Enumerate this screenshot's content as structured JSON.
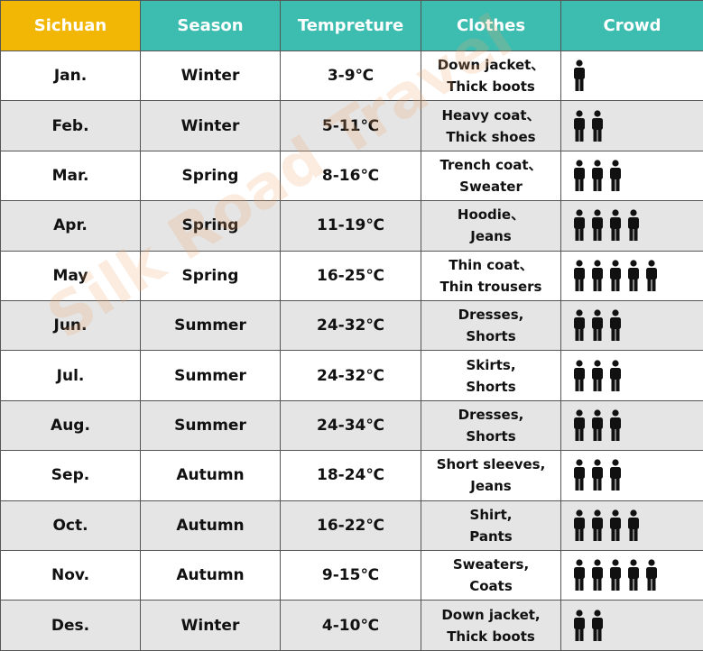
{
  "header": [
    "Sichuan",
    "Season",
    "Tempreture",
    "Clothes",
    "Crowd"
  ],
  "rows": [
    {
      "month": "Jan.",
      "season": "Winter",
      "temperature": "3-9℃",
      "clothes": [
        "Down jacket、",
        "Thick boots"
      ],
      "crowd": 1
    },
    {
      "month": "Feb.",
      "season": "Winter",
      "temperature": "5-11℃",
      "clothes": [
        "Heavy coat、",
        "Thick shoes"
      ],
      "crowd": 2
    },
    {
      "month": "Mar.",
      "season": "Spring",
      "temperature": "8-16℃",
      "clothes": [
        "Trench coat、",
        "Sweater"
      ],
      "crowd": 3
    },
    {
      "month": "Apr.",
      "season": "Spring",
      "temperature": "11-19℃",
      "clothes": [
        "Hoodie、",
        "Jeans"
      ],
      "crowd": 4
    },
    {
      "month": "May",
      "season": "Spring",
      "temperature": "16-25℃",
      "clothes": [
        "Thin coat、",
        "Thin trousers"
      ],
      "crowd": 5
    },
    {
      "month": "Jun.",
      "season": "Summer",
      "temperature": "24-32℃",
      "clothes": [
        "Dresses,",
        "Shorts"
      ],
      "crowd": 3
    },
    {
      "month": "Jul.",
      "season": "Summer",
      "temperature": "24-32℃",
      "clothes": [
        "Skirts,",
        "Shorts"
      ],
      "crowd": 3
    },
    {
      "month": "Aug.",
      "season": "Summer",
      "temperature": "24-34℃",
      "clothes": [
        "Dresses,",
        "Shorts"
      ],
      "crowd": 3
    },
    {
      "month": "Sep.",
      "season": "Autumn",
      "temperature": "18-24℃",
      "clothes": [
        "Short sleeves,",
        "Jeans"
      ],
      "crowd": 3
    },
    {
      "month": "Oct.",
      "season": "Autumn",
      "temperature": "16-22℃",
      "clothes": [
        "Shirt,",
        "Pants"
      ],
      "crowd": 4
    },
    {
      "month": "Nov.",
      "season": "Autumn",
      "temperature": "9-15℃",
      "clothes": [
        "Sweaters,",
        "Coats"
      ],
      "crowd": 5
    },
    {
      "month": "Des.",
      "season": "Winter",
      "temperature": "4-10℃",
      "clothes": [
        "Down jacket,",
        "Thick boots"
      ],
      "crowd": 2
    }
  ],
  "watermark": "Silk Road Travel"
}
